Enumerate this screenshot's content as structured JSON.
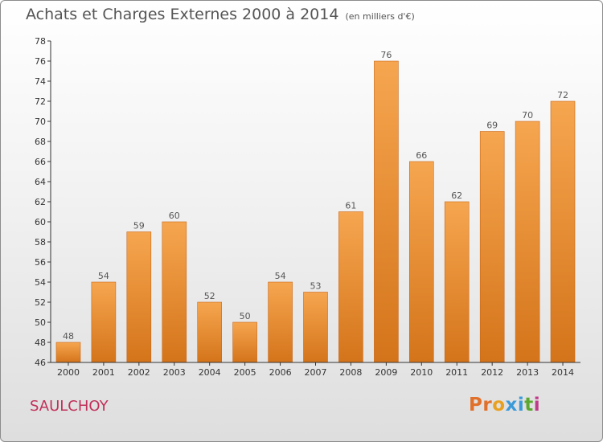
{
  "chart_data": {
    "type": "bar",
    "title": "Achats et Charges Externes 2000 à 2014",
    "subtitle": "(en milliers d'€)",
    "categories": [
      "2000",
      "2001",
      "2002",
      "2003",
      "2004",
      "2005",
      "2006",
      "2007",
      "2008",
      "2009",
      "2010",
      "2011",
      "2012",
      "2013",
      "2014"
    ],
    "values": [
      48,
      54,
      59,
      60,
      52,
      50,
      54,
      53,
      61,
      76,
      66,
      62,
      69,
      70,
      72
    ],
    "ylim": [
      46,
      78
    ],
    "yticks": [
      46,
      48,
      50,
      52,
      54,
      56,
      58,
      60,
      62,
      64,
      66,
      68,
      70,
      72,
      74,
      76,
      78
    ],
    "xlabel": "",
    "ylabel": "",
    "grid": false,
    "data_labels": true
  },
  "place_name": "SAULCHOY",
  "logo": {
    "text": "Proxiti",
    "letters": [
      "P",
      "r",
      "o",
      "x",
      "i",
      "t",
      "i"
    ]
  },
  "colors": {
    "bar_top": "#f6a650",
    "bar_bottom": "#d4741a",
    "bar_edge": "#c8681a",
    "axis": "#333333",
    "text": "#555555",
    "place": "#c0305a",
    "logo": [
      "#e0702a",
      "#e0702a",
      "#e8a020",
      "#3a9ad8",
      "#3a9ad8",
      "#5aa830",
      "#c03a8a"
    ]
  }
}
